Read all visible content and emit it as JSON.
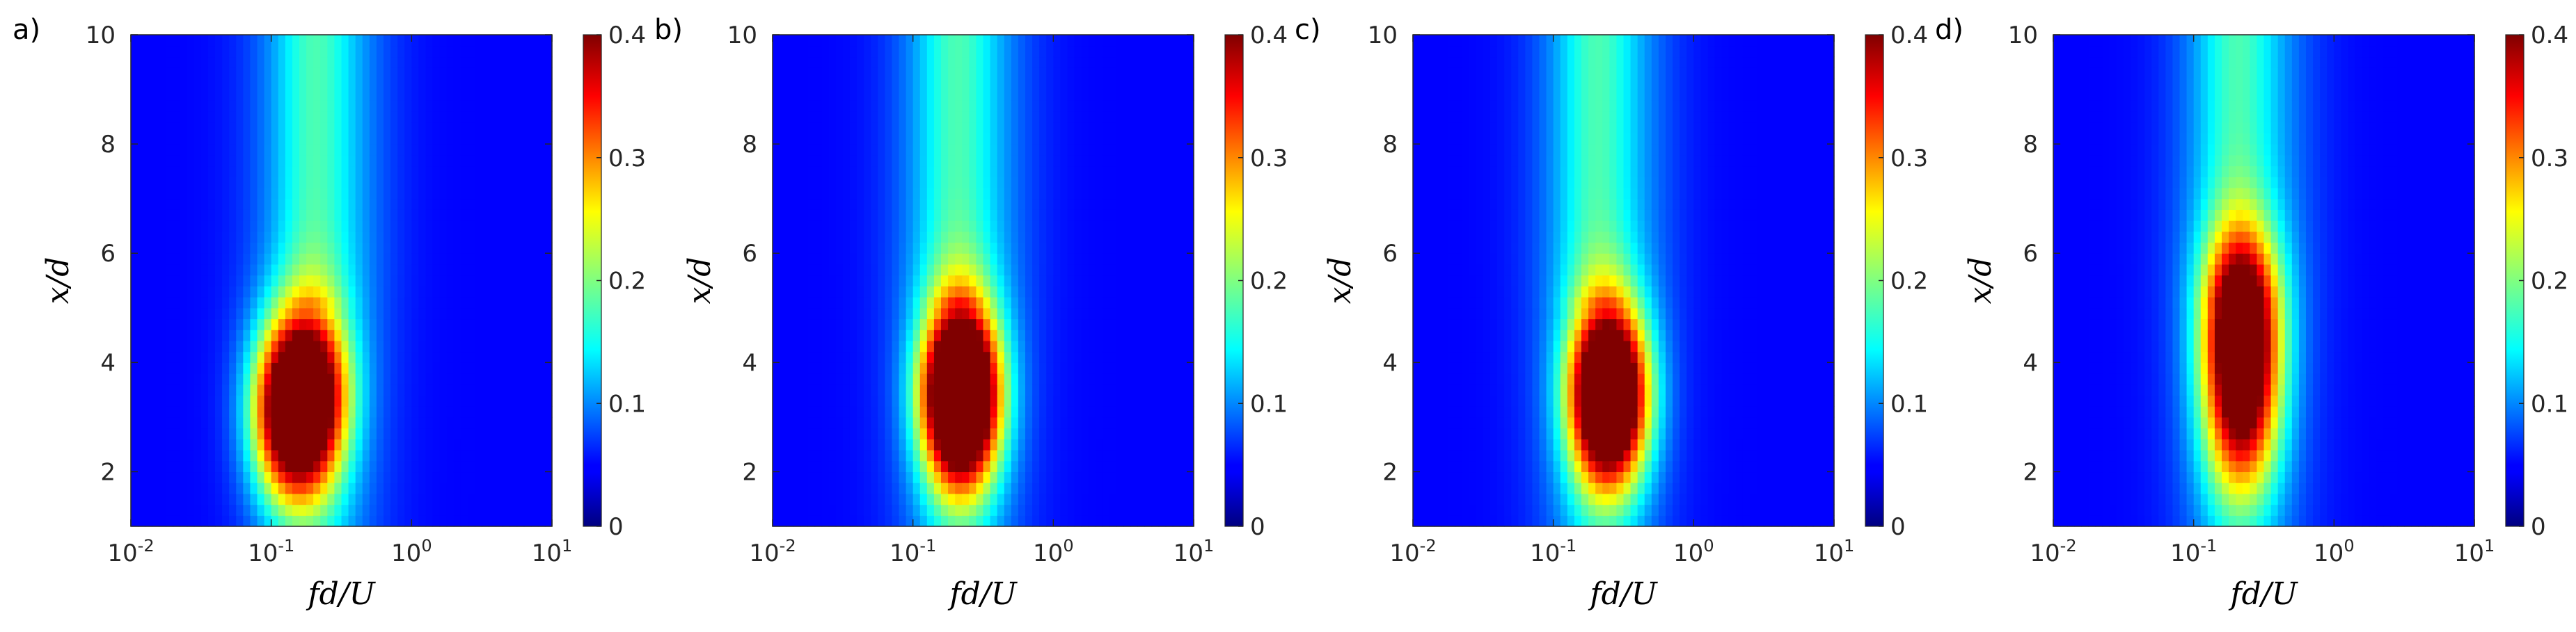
{
  "chart_data": [
    {
      "type": "heatmap",
      "panel_label": "a)",
      "xlabel": "fd/U",
      "ylabel": "x/d",
      "xscale": "log",
      "xlim": [
        0.01,
        10
      ],
      "ylim": [
        1,
        10
      ],
      "x_ticks": [
        "10-2",
        "10-1",
        "100",
        "101"
      ],
      "y_ticks": [
        "2",
        "4",
        "6",
        "8",
        "10"
      ],
      "colorbar": {
        "range": [
          0,
          0.4
        ],
        "ticks": [
          "0",
          "0.1",
          "0.2",
          "0.3",
          "0.4"
        ],
        "colormap": "jet"
      },
      "blobs": [
        {
          "fd_U": 0.2,
          "x_d": 3.4,
          "peak": 0.26
        },
        {
          "fd_U": 0.13,
          "x_d": 3.1,
          "peak": 0.32
        }
      ]
    },
    {
      "type": "heatmap",
      "panel_label": "b)",
      "xlabel": "fd/U",
      "ylabel": "x/d",
      "xscale": "log",
      "xlim": [
        0.01,
        10
      ],
      "ylim": [
        1,
        10
      ],
      "x_ticks": [
        "10-2",
        "10-1",
        "100",
        "101"
      ],
      "y_ticks": [
        "2",
        "4",
        "6",
        "8",
        "10"
      ],
      "colorbar": {
        "range": [
          0,
          0.4
        ],
        "ticks": [
          "0",
          "0.1",
          "0.2",
          "0.3",
          "0.4"
        ],
        "colormap": "jet"
      },
      "blobs": [
        {
          "fd_U": 0.22,
          "x_d": 3.4,
          "peak": 0.55
        }
      ]
    },
    {
      "type": "heatmap",
      "panel_label": "c)",
      "xlabel": "fd/U",
      "ylabel": "x/d",
      "xscale": "log",
      "xlim": [
        0.01,
        10
      ],
      "ylim": [
        1,
        10
      ],
      "x_ticks": [
        "10-2",
        "10-1",
        "100",
        "101"
      ],
      "y_ticks": [
        "2",
        "4",
        "6",
        "8",
        "10"
      ],
      "colorbar": {
        "range": [
          0,
          0.4
        ],
        "ticks": [
          "0",
          "0.1",
          "0.2",
          "0.3",
          "0.4"
        ],
        "colormap": "jet"
      },
      "blobs": [
        {
          "fd_U": 0.25,
          "x_d": 3.4,
          "peak": 0.5
        }
      ]
    },
    {
      "type": "heatmap",
      "panel_label": "d)",
      "xlabel": "fd/U",
      "ylabel": "x/d",
      "xscale": "log",
      "xlim": [
        0.01,
        10
      ],
      "ylim": [
        1,
        10
      ],
      "x_ticks": [
        "10-2",
        "10-1",
        "100",
        "101"
      ],
      "y_ticks": [
        "2",
        "4",
        "6",
        "8",
        "10"
      ],
      "colorbar": {
        "range": [
          0,
          0.4
        ],
        "ticks": [
          "0",
          "0.1",
          "0.2",
          "0.3",
          "0.4"
        ],
        "colormap": "jet"
      },
      "blobs": [
        {
          "fd_U": 0.22,
          "x_d": 4.8,
          "peak": 0.33
        },
        {
          "fd_U": 0.22,
          "x_d": 3.0,
          "peak": 0.22
        }
      ]
    }
  ]
}
